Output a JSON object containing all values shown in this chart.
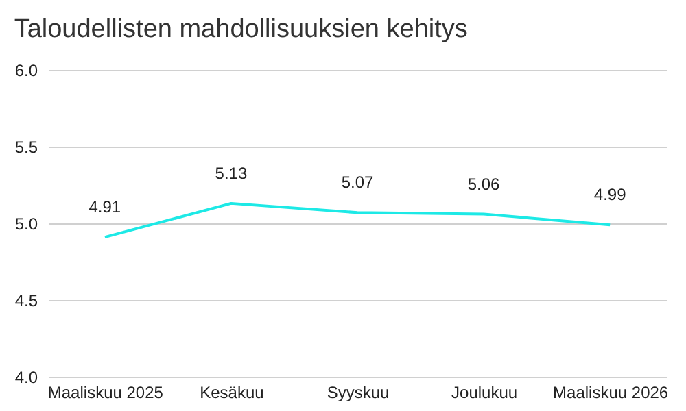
{
  "chart_data": {
    "type": "line",
    "title": "Taloudellisten mahdollisuuksien kehitys",
    "categories": [
      "Maaliskuu 2025",
      "Kesäkuu",
      "Syyskuu",
      "Joulukuu",
      "Maaliskuu 2026"
    ],
    "series": [
      {
        "color": "#1de9e6",
        "values": [
          4.91,
          5.13,
          5.07,
          5.06,
          4.99
        ]
      }
    ],
    "ylim": [
      4.0,
      6.0
    ],
    "yticks": [
      {
        "value": 4.0,
        "label": "4.0"
      },
      {
        "value": 4.5,
        "label": "4.5"
      },
      {
        "value": 5.0,
        "label": "5.0"
      },
      {
        "value": 5.5,
        "label": "5.5"
      },
      {
        "value": 6.0,
        "label": "6.0"
      }
    ],
    "grid": "y",
    "data_labels": true,
    "legend": false,
    "marker": "none",
    "line_style": "solid"
  }
}
